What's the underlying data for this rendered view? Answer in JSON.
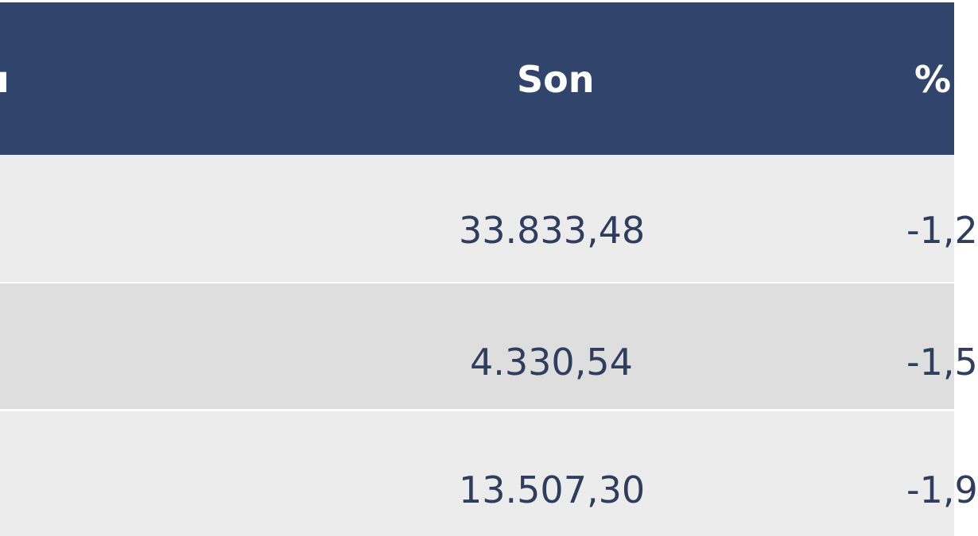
{
  "table": {
    "header": [
      "ı",
      "Son",
      "%"
    ],
    "rows": [
      [
        "33.833,48",
        "-1,2"
      ],
      [
        "4.330,54",
        "-1,5"
      ],
      [
        "13.507,30",
        "-1,9"
      ]
    ]
  }
}
